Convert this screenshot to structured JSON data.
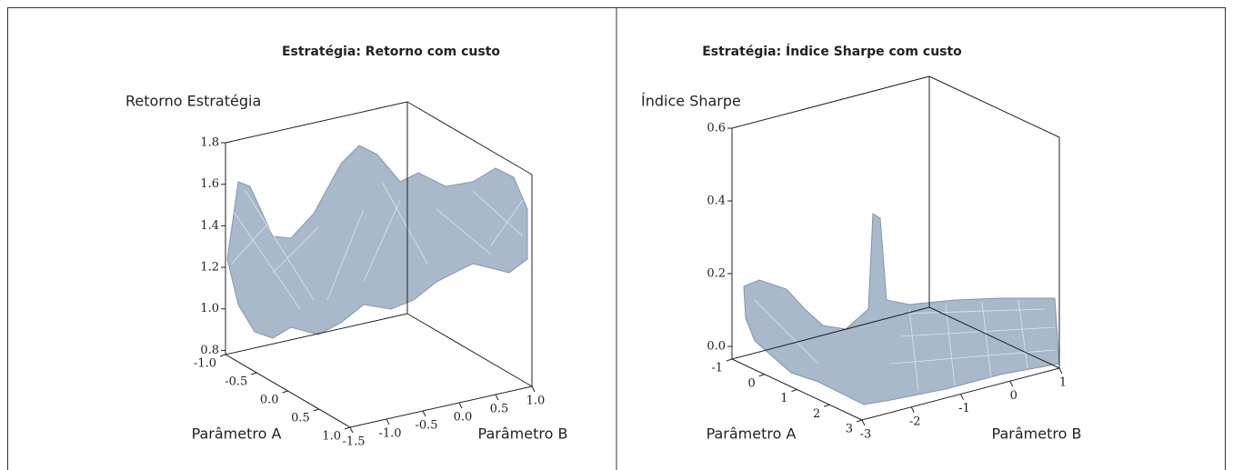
{
  "chart_data": [
    {
      "type": "surface3d",
      "title": "Estratégia: Retorno com custo",
      "zlabel": "Retorno Estratégia",
      "xlabel": "Parâmetro A",
      "ylabel": "Parâmetro B",
      "xlim": [
        -1,
        1
      ],
      "xticks": [
        {
          "value": -1,
          "label": "-1.0"
        },
        -0.5,
        {
          "value": 0,
          "label": "0.0"
        },
        0.5,
        {
          "value": 1,
          "label": "1.0"
        }
      ],
      "ylim": [
        -1.5,
        1
      ],
      "yticks": [
        -1.5,
        {
          "value": -1,
          "label": "-1.0"
        },
        -0.5,
        {
          "value": 0,
          "label": "0.0"
        },
        0.5,
        {
          "value": 1,
          "label": "1.0"
        }
      ],
      "zlim": [
        0.78,
        1.8
      ],
      "zticks": [
        0.8,
        {
          "value": 1,
          "label": "1.0"
        },
        1.2,
        1.4,
        1.6,
        1.8
      ],
      "color": "#a9b9cc"
    },
    {
      "type": "surface3d",
      "title": "Estratégia: Índice Sharpe com custo",
      "zlabel": "Índice Sharpe",
      "xlabel": "Parâmetro A",
      "ylabel": "Parâmetro B",
      "xlim": [
        -1,
        3
      ],
      "xticks": [
        -1,
        0,
        1,
        2,
        3
      ],
      "ylim": [
        -3,
        1
      ],
      "yticks": [
        -3,
        -2,
        -1,
        0,
        1
      ],
      "zlim": [
        -0.035,
        0.6
      ],
      "zticks": [
        {
          "value": 0,
          "label": "0.0"
        },
        0.2,
        0.4,
        0.6
      ],
      "color": "#a9b9cc"
    }
  ]
}
